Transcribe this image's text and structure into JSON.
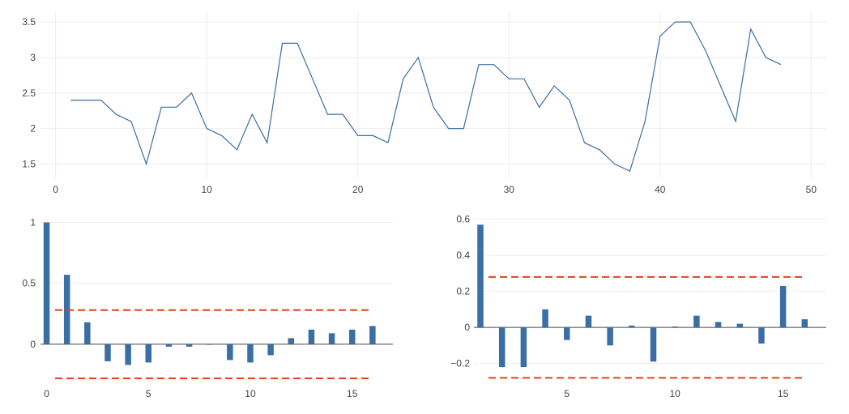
{
  "chart_data": [
    {
      "type": "line",
      "x": [
        1,
        2,
        3,
        4,
        5,
        6,
        7,
        8,
        9,
        10,
        11,
        12,
        13,
        14,
        15,
        16,
        17,
        18,
        19,
        20,
        21,
        22,
        23,
        24,
        25,
        26,
        27,
        28,
        29,
        30,
        31,
        32,
        33,
        34,
        35,
        36,
        37,
        38,
        39,
        40,
        41,
        42,
        43,
        44,
        45,
        46,
        47,
        48
      ],
      "y": [
        2.4,
        2.4,
        2.4,
        2.2,
        2.1,
        1.5,
        2.3,
        2.3,
        2.5,
        2.0,
        1.9,
        1.7,
        2.2,
        1.8,
        3.2,
        3.2,
        2.7,
        2.2,
        2.2,
        1.9,
        1.9,
        1.8,
        2.7,
        3.0,
        2.3,
        2.0,
        2.0,
        2.9,
        2.9,
        2.7,
        2.7,
        2.3,
        2.6,
        2.4,
        1.8,
        1.7,
        1.5,
        1.4,
        2.1,
        3.3,
        3.5,
        3.5,
        3.1,
        2.6,
        2.1,
        3.4,
        3.0,
        2.9
      ],
      "xlim": [
        -1,
        51
      ],
      "ylim": [
        1.3,
        3.65
      ],
      "xticks": [
        0,
        10,
        20,
        30,
        40,
        50
      ],
      "xtick_labels": [
        "0",
        "10",
        "20",
        "30",
        "40",
        "50"
      ],
      "yticks": [
        1.5,
        2,
        2.5,
        3,
        3.5
      ],
      "ytick_labels": [
        "1.5",
        "2",
        "2.5",
        "3",
        "3.5"
      ],
      "color": "#3b6ea5",
      "grid": true
    },
    {
      "type": "bar",
      "x": [
        0,
        1,
        2,
        3,
        4,
        5,
        6,
        7,
        8,
        9,
        10,
        11,
        12,
        13,
        14,
        15,
        16
      ],
      "values": [
        1.0,
        0.57,
        0.18,
        -0.14,
        -0.17,
        -0.15,
        -0.02,
        -0.02,
        0.0,
        -0.13,
        -0.15,
        -0.09,
        0.05,
        0.12,
        0.09,
        0.12,
        0.15
      ],
      "conf_bounds": [
        0.28,
        -0.28
      ],
      "xlim": [
        -0.3,
        17.0
      ],
      "ylim": [
        -0.32,
        1.03
      ],
      "xticks": [
        0,
        5,
        10,
        15
      ],
      "xtick_labels": [
        "0",
        "5",
        "10",
        "15"
      ],
      "yticks": [
        0,
        0.5,
        1
      ],
      "ytick_labels": [
        "0",
        "0.5",
        "1"
      ],
      "color": "#3b6ea5",
      "bound_color": "#e8401c",
      "grid": true
    },
    {
      "type": "bar",
      "x": [
        1,
        2,
        3,
        4,
        5,
        6,
        7,
        8,
        9,
        10,
        11,
        12,
        13,
        14,
        15,
        16
      ],
      "values": [
        0.57,
        -0.22,
        -0.22,
        0.1,
        -0.07,
        0.065,
        -0.1,
        0.01,
        -0.19,
        0.005,
        0.065,
        0.03,
        0.02,
        -0.09,
        0.23,
        0.045
      ],
      "conf_bounds": [
        0.28,
        -0.28
      ],
      "xlim": [
        0.7,
        17.0
      ],
      "ylim": [
        -0.31,
        0.63
      ],
      "xticks": [
        5,
        10,
        15
      ],
      "xtick_labels": [
        "5",
        "10",
        "15"
      ],
      "yticks": [
        -0.2,
        0,
        0.2,
        0.4,
        0.6
      ],
      "ytick_labels": [
        "−0.2",
        "0",
        "0.2",
        "0.4",
        "0.6"
      ],
      "color": "#3b6ea5",
      "bound_color": "#e8401c",
      "grid": true
    }
  ]
}
